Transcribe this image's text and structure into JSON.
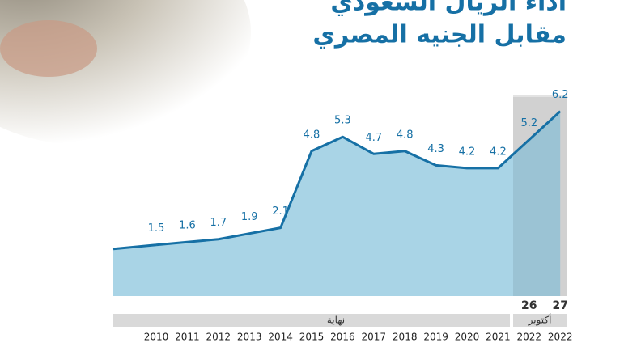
{
  "chart_data": {
    "type": "area",
    "title": "أداء الريال السعودي",
    "subtitle": "مقابل الجنيه المصري",
    "categories": [
      "2010",
      "2011",
      "2012",
      "2013",
      "2014",
      "2015",
      "2016",
      "2017",
      "2018",
      "2019",
      "2020",
      "2021",
      "2022",
      "2022"
    ],
    "day_labels": [
      "26",
      "27"
    ],
    "period_labels": [
      "نهاية",
      "أكتوبر"
    ],
    "values": [
      1.5,
      1.6,
      1.7,
      1.9,
      2.1,
      4.8,
      5.3,
      4.7,
      4.8,
      4.3,
      4.2,
      4.2,
      5.2,
      6.2
    ],
    "color": "#1670a5",
    "area_color": "#a9d4e6",
    "ylim": [
      -0.3,
      6.7
    ]
  }
}
